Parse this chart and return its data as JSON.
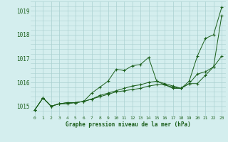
{
  "title": "Graphe pression niveau de la mer (hPa)",
  "xlabel_ticks": [
    0,
    1,
    2,
    3,
    4,
    5,
    6,
    7,
    8,
    9,
    10,
    11,
    12,
    13,
    14,
    15,
    16,
    17,
    18,
    19,
    20,
    21,
    22,
    23
  ],
  "yticks": [
    1015,
    1016,
    1017,
    1018,
    1019
  ],
  "ylim": [
    1014.6,
    1019.4
  ],
  "xlim": [
    -0.5,
    23.5
  ],
  "bg_color": "#d4eeee",
  "grid_color": "#aad0d0",
  "line_color": "#1a5e1a",
  "marker_color": "#1a5e1a",
  "label_color": "#1a5e1a",
  "series": [
    [
      1014.85,
      1015.35,
      1015.0,
      1015.1,
      1015.1,
      1015.15,
      1015.2,
      1015.55,
      1015.8,
      1016.05,
      1016.55,
      1016.5,
      1016.7,
      1016.75,
      1017.05,
      1016.05,
      1015.9,
      1015.75,
      1015.75,
      1016.05,
      1017.1,
      1017.85,
      1018.0,
      1019.15
    ],
    [
      1014.85,
      1015.35,
      1015.0,
      1015.1,
      1015.15,
      1015.15,
      1015.2,
      1015.3,
      1015.4,
      1015.5,
      1015.6,
      1015.65,
      1015.7,
      1015.75,
      1015.85,
      1015.9,
      1015.9,
      1015.8,
      1015.75,
      1015.95,
      1016.35,
      1016.45,
      1016.65,
      1017.1
    ],
    [
      1014.85,
      1015.35,
      1015.0,
      1015.1,
      1015.15,
      1015.15,
      1015.2,
      1015.3,
      1015.45,
      1015.55,
      1015.65,
      1015.75,
      1015.85,
      1015.9,
      1016.0,
      1016.05,
      1015.95,
      1015.85,
      1015.75,
      1015.95,
      1015.95,
      1016.3,
      1016.65,
      1018.8
    ]
  ]
}
